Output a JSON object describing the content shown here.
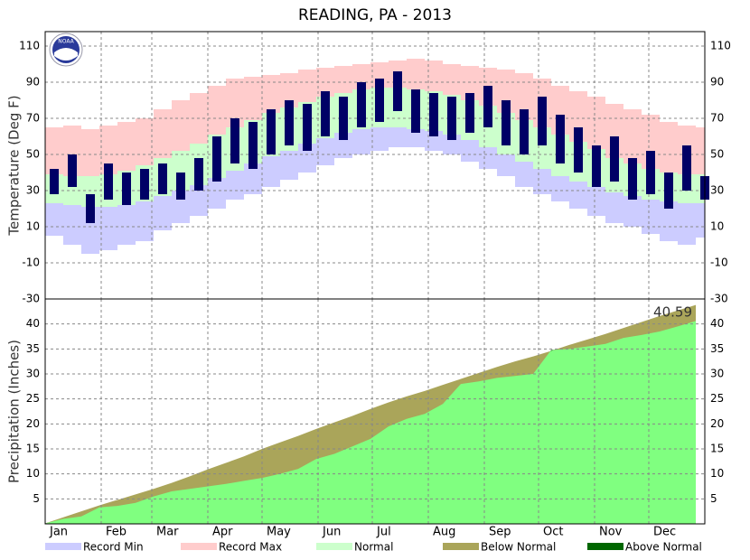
{
  "title": "READING, PA - 2013",
  "logo": "NOAA",
  "legend": [
    {
      "name": "Record Min",
      "color": "#ccccff"
    },
    {
      "name": "Record Max",
      "color": "#ffcccc"
    },
    {
      "name": "Normal",
      "color": "#ccffcc"
    },
    {
      "name": "Below Normal",
      "color": "#aaa55a"
    },
    {
      "name": "Above Normal",
      "color": "#006600"
    }
  ],
  "chart_data": [
    {
      "type": "temperature-band",
      "ylabel": "Temperature (Deg F)",
      "x": [
        1,
        11,
        21,
        31,
        41,
        51,
        61,
        71,
        81,
        91,
        101,
        111,
        121,
        131,
        141,
        151,
        161,
        171,
        181,
        191,
        201,
        211,
        221,
        231,
        241,
        251,
        261,
        271,
        281,
        291,
        301,
        311,
        321,
        331,
        341,
        351,
        361
      ],
      "record_max": [
        65,
        66,
        64,
        66,
        68,
        70,
        75,
        80,
        84,
        88,
        92,
        93,
        94,
        95,
        97,
        98,
        99,
        100,
        101,
        102,
        103,
        102,
        100,
        99,
        98,
        97,
        95,
        92,
        88,
        85,
        82,
        78,
        75,
        72,
        68,
        66,
        65
      ],
      "record_min": [
        5,
        0,
        -5,
        -3,
        0,
        2,
        8,
        12,
        16,
        20,
        25,
        28,
        32,
        36,
        40,
        44,
        48,
        50,
        52,
        54,
        54,
        52,
        50,
        46,
        42,
        38,
        32,
        28,
        24,
        20,
        16,
        12,
        10,
        6,
        2,
        0,
        4
      ],
      "normal_high": [
        39,
        38,
        38,
        39,
        41,
        44,
        48,
        52,
        56,
        61,
        65,
        69,
        73,
        76,
        79,
        82,
        84,
        86,
        87,
        87,
        86,
        85,
        83,
        80,
        77,
        73,
        69,
        65,
        61,
        57,
        53,
        48,
        45,
        42,
        40,
        39,
        39
      ],
      "normal_low": [
        23,
        22,
        21,
        21,
        22,
        24,
        27,
        30,
        33,
        37,
        41,
        45,
        49,
        52,
        56,
        59,
        62,
        64,
        65,
        65,
        64,
        63,
        61,
        58,
        54,
        50,
        46,
        42,
        38,
        35,
        32,
        29,
        27,
        25,
        24,
        23,
        23
      ],
      "observed_high": [
        42,
        50,
        28,
        45,
        40,
        42,
        45,
        40,
        48,
        60,
        70,
        68,
        75,
        80,
        78,
        85,
        82,
        90,
        92,
        96,
        86,
        84,
        82,
        84,
        88,
        80,
        75,
        82,
        72,
        65,
        55,
        60,
        48,
        52,
        40,
        55,
        38
      ],
      "observed_low": [
        28,
        32,
        12,
        25,
        22,
        25,
        28,
        25,
        30,
        35,
        45,
        42,
        50,
        55,
        52,
        60,
        58,
        65,
        68,
        74,
        62,
        60,
        58,
        62,
        65,
        55,
        50,
        55,
        45,
        40,
        32,
        35,
        25,
        28,
        20,
        30,
        25
      ],
      "observed_color": "#000066",
      "ylim": [
        -30,
        118
      ],
      "yticks": [
        -30,
        -10,
        10,
        30,
        50,
        70,
        90,
        110
      ],
      "xlim": [
        1,
        366
      ],
      "grid": true
    },
    {
      "type": "precipitation-area",
      "ylabel": "Precipitation (Inches)",
      "x": [
        1,
        11,
        21,
        31,
        41,
        51,
        61,
        71,
        81,
        91,
        101,
        111,
        121,
        131,
        141,
        151,
        161,
        171,
        181,
        191,
        201,
        211,
        221,
        231,
        241,
        251,
        261,
        271,
        281,
        291,
        301,
        311,
        321,
        331,
        341,
        351,
        361
      ],
      "normal": [
        0.1,
        1.3,
        2.5,
        3.7,
        4.8,
        5.9,
        7.0,
        8.2,
        9.5,
        10.9,
        12.2,
        13.5,
        15.0,
        16.3,
        17.6,
        19.0,
        20.3,
        21.6,
        23.0,
        24.3,
        25.5,
        26.6,
        27.8,
        29.0,
        30.2,
        31.4,
        32.5,
        33.5,
        34.6,
        35.8,
        36.9,
        38.0,
        39.2,
        40.4,
        41.6,
        42.7,
        43.8
      ],
      "observed": [
        0.1,
        1.0,
        1.5,
        3.3,
        3.6,
        4.2,
        5.5,
        6.5,
        7.0,
        7.5,
        8.0,
        8.6,
        9.2,
        10.0,
        11.0,
        13.0,
        14.0,
        15.5,
        17.0,
        19.5,
        21.0,
        22.0,
        24.0,
        28.0,
        28.5,
        29.2,
        29.6,
        30.0,
        34.8,
        35.0,
        35.5,
        36.0,
        37.2,
        37.8,
        38.5,
        39.5,
        40.59
      ],
      "observed_color": "#80ff80",
      "annotation": "40.59",
      "ylim": [
        0,
        45
      ],
      "yticks": [
        5,
        10,
        15,
        20,
        25,
        30,
        35,
        40
      ],
      "xlim": [
        1,
        366
      ],
      "xticks": [
        {
          "value": 1,
          "label": "Jan"
        },
        {
          "value": 32,
          "label": "Feb"
        },
        {
          "value": 60,
          "label": "Mar"
        },
        {
          "value": 91,
          "label": "Apr"
        },
        {
          "value": 121,
          "label": "May"
        },
        {
          "value": 152,
          "label": "Jun"
        },
        {
          "value": 182,
          "label": "Jul"
        },
        {
          "value": 213,
          "label": "Aug"
        },
        {
          "value": 244,
          "label": "Sep"
        },
        {
          "value": 274,
          "label": "Oct"
        },
        {
          "value": 305,
          "label": "Nov"
        },
        {
          "value": 335,
          "label": "Dec"
        }
      ],
      "grid": true
    }
  ]
}
